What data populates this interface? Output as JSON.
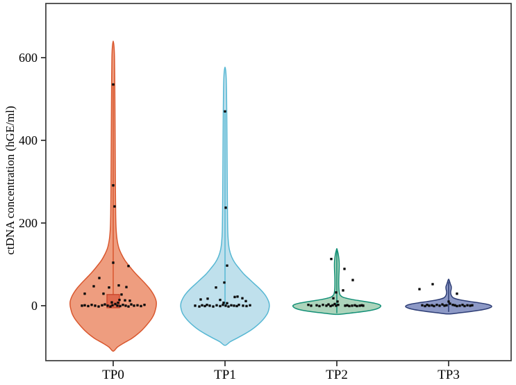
{
  "chart_data": {
    "type": "violin",
    "title": "",
    "xlabel": "",
    "ylabel": "ctDNA concentration (hGE/ml)",
    "categories": [
      "TP0",
      "TP1",
      "TP2",
      "TP3"
    ],
    "yticks": [
      0,
      200,
      400,
      600
    ],
    "ylim": [
      -133,
      731
    ],
    "grid": false,
    "legend": null,
    "point_color": "#0d0d0d",
    "point_size": 3.4,
    "frame_color": "#3a3a3a",
    "tick_color": "#2a2a2a",
    "label_color": "#000000",
    "groups": [
      {
        "name": "TP0",
        "fill": "#ee9d7f",
        "stroke": "#d9572e",
        "width_factor": 1.0,
        "profile": [
          [
            -110,
            0
          ],
          [
            -100,
            0.1
          ],
          [
            -90,
            0.25
          ],
          [
            -80,
            0.42
          ],
          [
            -70,
            0.55
          ],
          [
            -60,
            0.66
          ],
          [
            -50,
            0.75
          ],
          [
            -40,
            0.83
          ],
          [
            -30,
            0.9
          ],
          [
            -20,
            0.95
          ],
          [
            -10,
            0.98
          ],
          [
            0,
            1.0
          ],
          [
            10,
            1.0
          ],
          [
            20,
            0.97
          ],
          [
            30,
            0.92
          ],
          [
            42,
            0.84
          ],
          [
            55,
            0.73
          ],
          [
            68,
            0.61
          ],
          [
            80,
            0.5
          ],
          [
            95,
            0.38
          ],
          [
            110,
            0.27
          ],
          [
            125,
            0.19
          ],
          [
            140,
            0.13
          ],
          [
            160,
            0.09
          ],
          [
            185,
            0.068
          ],
          [
            220,
            0.058
          ],
          [
            280,
            0.052
          ],
          [
            350,
            0.048
          ],
          [
            420,
            0.044
          ],
          [
            490,
            0.04
          ],
          [
            550,
            0.036
          ],
          [
            600,
            0.03
          ],
          [
            625,
            0.02
          ],
          [
            640,
            0
          ]
        ],
        "center_line": {
          "from": -5,
          "to": 535
        },
        "box": {
          "half_width": 9,
          "low": -5,
          "high": 27,
          "fill": "#e06a4e",
          "stroke": "#c9442a"
        },
        "points": [
          [
            0,
            535
          ],
          [
            0,
            291
          ],
          [
            2,
            240
          ],
          [
            0,
            104
          ],
          [
            22,
            96
          ],
          [
            -20,
            67
          ],
          [
            -28,
            47
          ],
          [
            8,
            49
          ],
          [
            -6,
            44
          ],
          [
            19,
            45
          ],
          [
            -41,
            29
          ],
          [
            -14,
            29
          ],
          [
            12,
            27
          ],
          [
            9,
            14
          ],
          [
            17,
            13
          ],
          [
            24,
            12
          ],
          [
            -2,
            8
          ],
          [
            7,
            7
          ],
          [
            -45,
            0
          ],
          [
            -41,
            1
          ],
          [
            -36,
            -1
          ],
          [
            -31,
            2
          ],
          [
            -26,
            0
          ],
          [
            -21,
            -2
          ],
          [
            -16,
            1
          ],
          [
            -12,
            3
          ],
          [
            -8,
            0
          ],
          [
            -4,
            -2
          ],
          [
            -1,
            1
          ],
          [
            3,
            4
          ],
          [
            6,
            0
          ],
          [
            10,
            -1
          ],
          [
            14,
            2
          ],
          [
            18,
            0
          ],
          [
            22,
            -2
          ],
          [
            26,
            3
          ],
          [
            30,
            0
          ],
          [
            35,
            1
          ],
          [
            40,
            -1
          ],
          [
            45,
            2
          ]
        ]
      },
      {
        "name": "TP1",
        "fill": "#bfe0ec",
        "stroke": "#56b7d3",
        "width_factor": 1.03,
        "profile": [
          [
            -96,
            0
          ],
          [
            -87,
            0.12
          ],
          [
            -78,
            0.28
          ],
          [
            -68,
            0.45
          ],
          [
            -58,
            0.6
          ],
          [
            -48,
            0.72
          ],
          [
            -38,
            0.82
          ],
          [
            -28,
            0.9
          ],
          [
            -18,
            0.96
          ],
          [
            -8,
            0.99
          ],
          [
            0,
            1.0
          ],
          [
            8,
            0.99
          ],
          [
            18,
            0.95
          ],
          [
            28,
            0.89
          ],
          [
            40,
            0.79
          ],
          [
            52,
            0.67
          ],
          [
            64,
            0.55
          ],
          [
            76,
            0.43
          ],
          [
            90,
            0.32
          ],
          [
            104,
            0.22
          ],
          [
            118,
            0.15
          ],
          [
            135,
            0.1
          ],
          [
            155,
            0.075
          ],
          [
            180,
            0.062
          ],
          [
            230,
            0.055
          ],
          [
            300,
            0.05
          ],
          [
            380,
            0.045
          ],
          [
            460,
            0.04
          ],
          [
            520,
            0.034
          ],
          [
            560,
            0.022
          ],
          [
            577,
            0
          ]
        ],
        "center_line": {
          "from": -3,
          "to": 470
        },
        "box": null,
        "points": [
          [
            0,
            470
          ],
          [
            1,
            237
          ],
          [
            3,
            97
          ],
          [
            -1,
            56
          ],
          [
            -13,
            44
          ],
          [
            -35,
            15
          ],
          [
            -25,
            17
          ],
          [
            14,
            21
          ],
          [
            18,
            22
          ],
          [
            25,
            18
          ],
          [
            30,
            11
          ],
          [
            -7,
            14
          ],
          [
            -2,
            7
          ],
          [
            3,
            6
          ],
          [
            -43,
            0
          ],
          [
            -37,
            -2
          ],
          [
            -33,
            1
          ],
          [
            -29,
            -1
          ],
          [
            -26,
            2
          ],
          [
            -22,
            0
          ],
          [
            -17,
            -2
          ],
          [
            -12,
            1
          ],
          [
            -7,
            -1
          ],
          [
            -3,
            2
          ],
          [
            1,
            0
          ],
          [
            5,
            -2
          ],
          [
            9,
            1
          ],
          [
            13,
            0
          ],
          [
            17,
            -1
          ],
          [
            20,
            2
          ],
          [
            26,
            0
          ],
          [
            31,
            -1
          ],
          [
            36,
            1
          ]
        ]
      },
      {
        "name": "TP2",
        "fill": "#acd4bb",
        "stroke": "#128f76",
        "width_factor": 1.02,
        "profile": [
          [
            -21,
            0
          ],
          [
            -18,
            0.3
          ],
          [
            -15,
            0.55
          ],
          [
            -12,
            0.74
          ],
          [
            -9,
            0.87
          ],
          [
            -6,
            0.95
          ],
          [
            -3,
            0.99
          ],
          [
            0,
            1.0
          ],
          [
            3,
            0.96
          ],
          [
            6,
            0.86
          ],
          [
            9,
            0.7
          ],
          [
            12,
            0.52
          ],
          [
            15,
            0.35
          ],
          [
            18,
            0.22
          ],
          [
            21,
            0.13
          ],
          [
            25,
            0.082
          ],
          [
            30,
            0.06
          ],
          [
            40,
            0.048
          ],
          [
            55,
            0.044
          ],
          [
            70,
            0.046
          ],
          [
            85,
            0.052
          ],
          [
            98,
            0.055
          ],
          [
            108,
            0.052
          ],
          [
            118,
            0.042
          ],
          [
            127,
            0.028
          ],
          [
            134,
            0.012
          ],
          [
            138,
            0
          ]
        ],
        "center_line": {
          "from": -18,
          "to": 133
        },
        "box": null,
        "points": [
          [
            -8,
            113
          ],
          [
            11,
            89
          ],
          [
            23,
            62
          ],
          [
            9,
            37
          ],
          [
            -1,
            32
          ],
          [
            -5,
            18
          ],
          [
            1,
            10
          ],
          [
            -41,
            2
          ],
          [
            -37,
            0
          ],
          [
            -29,
            1
          ],
          [
            -25,
            -1
          ],
          [
            -20,
            2
          ],
          [
            -15,
            0
          ],
          [
            -12,
            3
          ],
          [
            -9,
            -1
          ],
          [
            -6,
            1
          ],
          [
            -3,
            4
          ],
          [
            -1,
            0
          ],
          [
            2,
            2
          ],
          [
            12,
            0
          ],
          [
            15,
            1
          ],
          [
            18,
            -1
          ],
          [
            22,
            0
          ],
          [
            26,
            1
          ],
          [
            29,
            -1
          ],
          [
            33,
            0
          ],
          [
            36,
            1
          ],
          [
            38,
            0
          ]
        ]
      },
      {
        "name": "TP3",
        "fill": "#8d99c6",
        "stroke": "#2c3c74",
        "width_factor": 1.0,
        "profile": [
          [
            -20,
            0
          ],
          [
            -17,
            0.28
          ],
          [
            -14,
            0.52
          ],
          [
            -11,
            0.72
          ],
          [
            -8,
            0.87
          ],
          [
            -5,
            0.96
          ],
          [
            -2,
            1.0
          ],
          [
            1,
            0.97
          ],
          [
            4,
            0.87
          ],
          [
            7,
            0.7
          ],
          [
            10,
            0.5
          ],
          [
            13,
            0.32
          ],
          [
            16,
            0.19
          ],
          [
            19,
            0.11
          ],
          [
            23,
            0.072
          ],
          [
            28,
            0.052
          ],
          [
            34,
            0.048
          ],
          [
            40,
            0.06
          ],
          [
            46,
            0.062
          ],
          [
            51,
            0.045
          ],
          [
            56,
            0.03
          ],
          [
            61,
            0.015
          ],
          [
            64,
            0
          ]
        ],
        "center_line": {
          "from": -15,
          "to": 58
        },
        "box": null,
        "points": [
          [
            -42,
            40
          ],
          [
            -23,
            52
          ],
          [
            12,
            29
          ],
          [
            0,
            10
          ],
          [
            2,
            5
          ],
          [
            -38,
            1
          ],
          [
            -34,
            -1
          ],
          [
            -31,
            2
          ],
          [
            -28,
            0
          ],
          [
            -24,
            1
          ],
          [
            -21,
            -1
          ],
          [
            -17,
            2
          ],
          [
            -13,
            0
          ],
          [
            -9,
            3
          ],
          [
            -6,
            0
          ],
          [
            -3,
            1
          ],
          [
            6,
            2
          ],
          [
            9,
            1
          ],
          [
            12,
            -1
          ],
          [
            16,
            0
          ],
          [
            20,
            2
          ],
          [
            23,
            -1
          ],
          [
            27,
            1
          ],
          [
            31,
            0
          ],
          [
            34,
            1
          ]
        ]
      }
    ]
  }
}
